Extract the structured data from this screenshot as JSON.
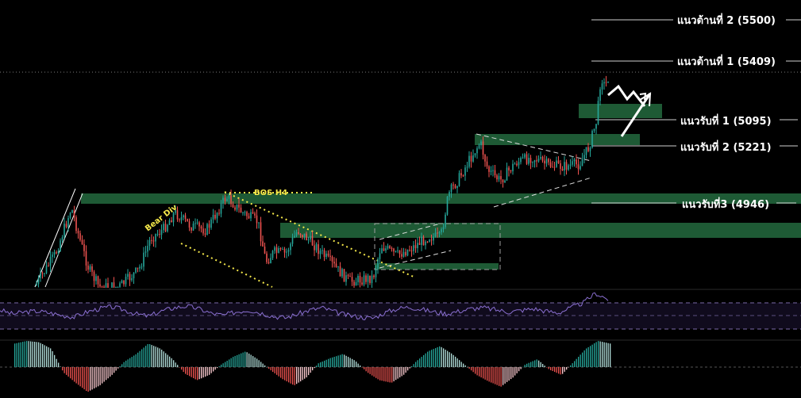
{
  "chart_data": [
    {
      "type": "candlestick",
      "panel": "price",
      "levels": [
        {
          "label": "แนวต้านที่ 2 (5500)",
          "kind": "resistance",
          "value": 5500
        },
        {
          "label": "แนวต้านที่ 1 (5409)",
          "kind": "resistance",
          "value": 5409
        },
        {
          "label": "แนวรับที่ 1 (5095)",
          "kind": "support",
          "value": 5095
        },
        {
          "label": "แนวรับที่ 2 (5221)",
          "kind": "support",
          "value": 5221
        },
        {
          "label": "แนวรับที่3 (4946)",
          "kind": "support",
          "value": 4946
        }
      ],
      "annotations": [
        "BOS H4",
        "Bear Div"
      ],
      "colors": {
        "bull": "#26a69a",
        "bear": "#ef5350",
        "zone": "#1e5a35",
        "zone_bright": "#2a6b42",
        "annotation": "#f5e84a",
        "level_line": "#cfcfcf"
      }
    },
    {
      "type": "line",
      "panel": "oscillator",
      "series": [
        {
          "values": [
            0.55,
            0.45,
            0.5,
            0.52,
            0.48,
            0.42,
            0.38,
            0.5,
            0.58,
            0.62,
            0.55,
            0.45,
            0.4,
            0.52,
            0.6,
            0.64,
            0.58,
            0.47,
            0.42,
            0.5,
            0.55,
            0.48,
            0.4,
            0.36,
            0.45,
            0.55,
            0.6,
            0.5,
            0.42,
            0.38,
            0.35,
            0.48,
            0.58,
            0.62,
            0.56,
            0.5,
            0.46,
            0.52,
            0.58,
            0.6,
            0.55,
            0.5,
            0.54,
            0.58,
            0.52,
            0.48,
            0.6,
            0.72,
            0.95,
            0.8
          ]
        }
      ],
      "color": "#8a6fd1"
    },
    {
      "type": "bar",
      "panel": "histogram",
      "series": [
        {
          "values": [
            0.9,
            1.0,
            0.95,
            0.7,
            -0.2,
            -0.6,
            -0.95,
            -0.7,
            -0.3,
            0.2,
            0.5,
            0.9,
            0.7,
            0.3,
            -0.25,
            -0.5,
            -0.3,
            0.1,
            0.4,
            0.6,
            0.3,
            -0.1,
            -0.45,
            -0.7,
            -0.4,
            0.15,
            0.35,
            0.5,
            0.25,
            -0.2,
            -0.5,
            -0.6,
            -0.3,
            0.2,
            0.6,
            0.8,
            0.5,
            0.1,
            -0.3,
            -0.55,
            -0.75,
            -0.4,
            0.1,
            0.3,
            -0.1,
            -0.3,
            0.2,
            0.7,
            1.0,
            0.9
          ]
        }
      ],
      "colors": {
        "positive": "#26a69a",
        "positive_light": "#b2dfdb",
        "negative": "#ef5350",
        "negative_light": "#ffcdd2"
      }
    }
  ]
}
